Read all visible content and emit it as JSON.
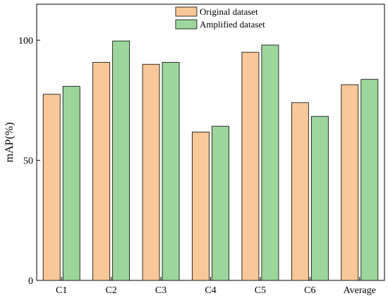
{
  "chart_data": {
    "type": "bar",
    "categories": [
      "C1",
      "C2",
      "C3",
      "C4",
      "C5",
      "C6",
      "Average"
    ],
    "series": [
      {
        "name": "Original dataset",
        "color": "#fac898",
        "values": [
          77.5,
          90.8,
          90.0,
          61.8,
          95.0,
          74.0,
          81.5
        ]
      },
      {
        "name": "Amplified dataset",
        "color": "#9cd69c",
        "values": [
          80.8,
          99.7,
          90.8,
          64.2,
          98.0,
          68.3,
          83.7
        ]
      }
    ],
    "title": "",
    "xlabel": "",
    "ylabel": "mAP(%)",
    "ylim": [
      0,
      115
    ],
    "yticks": [
      0,
      50,
      100
    ],
    "grid": false,
    "legend_position": "top-center"
  }
}
